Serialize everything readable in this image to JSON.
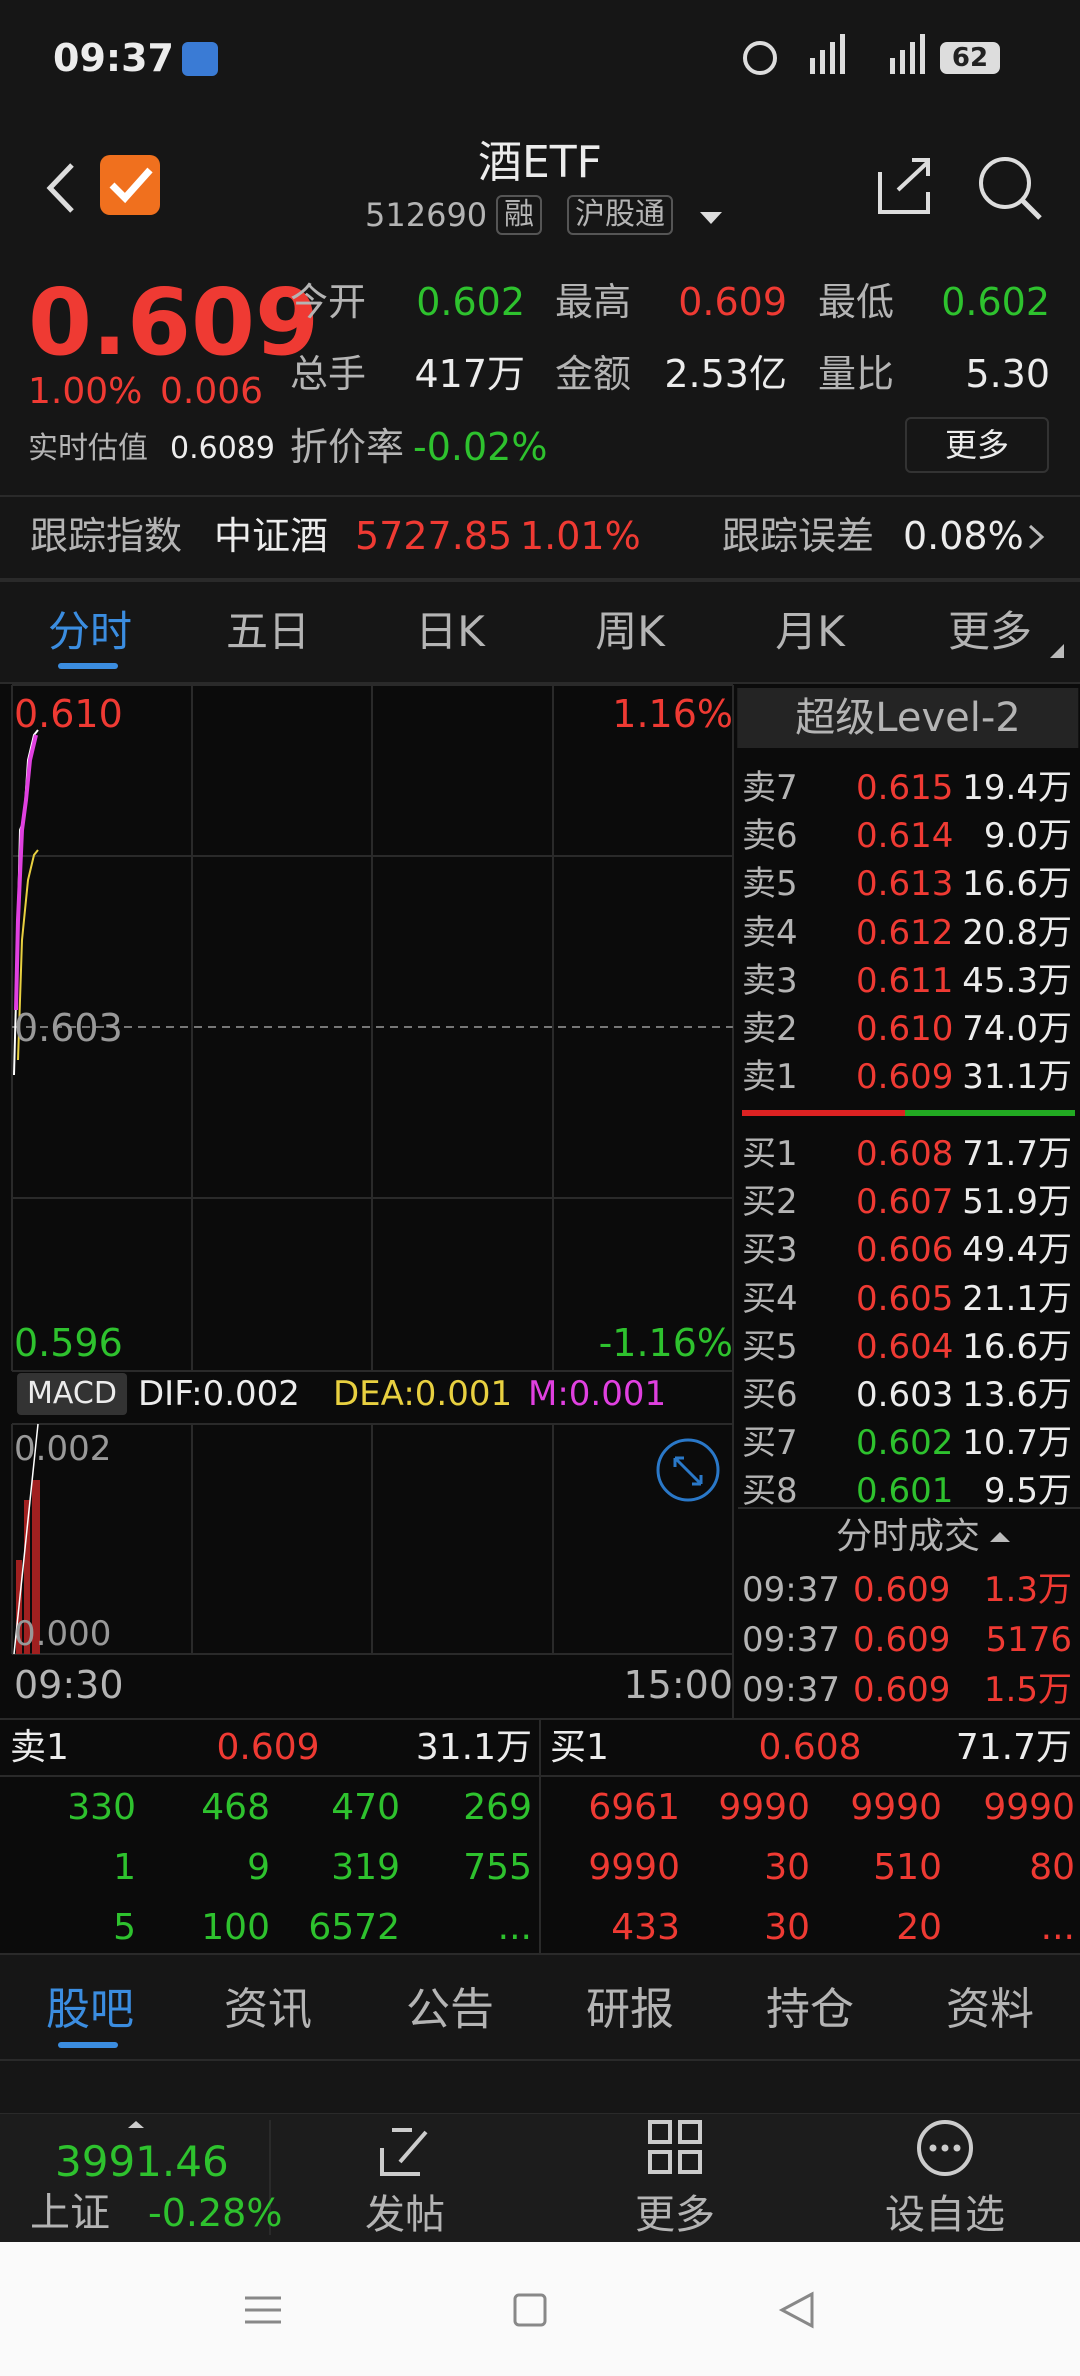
{
  "status_bar": {
    "time": "09:37",
    "battery": "62"
  },
  "header": {
    "title": "酒ETF",
    "code": "512690",
    "tags": [
      "融",
      "沪股通"
    ]
  },
  "quote": {
    "price": "0.609",
    "change_pct": "1.00%",
    "change": "0.006",
    "estimate_label": "实时估值",
    "estimate": "0.6089",
    "fields": [
      {
        "label": "今开",
        "value": "0.602"
      },
      {
        "label": "最高",
        "value": "0.609"
      },
      {
        "label": "最低",
        "value": "0.602"
      },
      {
        "label": "总手",
        "value": "417万"
      },
      {
        "label": "金额",
        "value": "2.53亿"
      },
      {
        "label": "量比",
        "value": "5.30"
      }
    ],
    "discount_label": "折价率",
    "discount": "-0.02%",
    "more": "更多"
  },
  "tracking": {
    "label": "跟踪指数",
    "index": "中证酒",
    "value": "5727.85",
    "pct": "1.01%",
    "error_label": "跟踪误差",
    "error": "0.08%"
  },
  "tabs": [
    "分时",
    "五日",
    "日K",
    "周K",
    "月K",
    "更多"
  ],
  "chart": {
    "top": "0.610",
    "top_pct": "1.16%",
    "mid": "0.603",
    "bottom": "0.596",
    "bottom_pct": "-1.16%",
    "start": "09:30",
    "end": "15:00"
  },
  "macd": {
    "label": "MACD",
    "dif": "DIF:0.002",
    "dea": "DEA:0.001",
    "m": "M:0.001",
    "top": "0.002",
    "bottom": "0.000"
  },
  "level2": {
    "title": "超级Level-2",
    "asks": [
      {
        "label": "卖7",
        "price": "0.615",
        "vol": "19.4万"
      },
      {
        "label": "卖6",
        "price": "0.614",
        "vol": "9.0万"
      },
      {
        "label": "卖5",
        "price": "0.613",
        "vol": "16.6万"
      },
      {
        "label": "卖4",
        "price": "0.612",
        "vol": "20.8万"
      },
      {
        "label": "卖3",
        "price": "0.611",
        "vol": "45.3万"
      },
      {
        "label": "卖2",
        "price": "0.610",
        "vol": "74.0万"
      },
      {
        "label": "卖1",
        "price": "0.609",
        "vol": "31.1万"
      }
    ],
    "bids": [
      {
        "label": "买1",
        "price": "0.608",
        "vol": "71.7万"
      },
      {
        "label": "买2",
        "price": "0.607",
        "vol": "51.9万"
      },
      {
        "label": "买3",
        "price": "0.606",
        "vol": "49.4万"
      },
      {
        "label": "买4",
        "price": "0.605",
        "vol": "21.1万"
      },
      {
        "label": "买5",
        "price": "0.604",
        "vol": "16.6万"
      },
      {
        "label": "买6",
        "price": "0.603",
        "vol": "13.6万"
      },
      {
        "label": "买7",
        "price": "0.602",
        "vol": "10.7万"
      },
      {
        "label": "买8",
        "price": "0.601",
        "vol": "9.5万"
      }
    ]
  },
  "trades": {
    "title": "分时成交",
    "rows": [
      [
        "09:37",
        "0.609",
        "1.3万"
      ],
      [
        "09:37",
        "0.609",
        "5176"
      ],
      [
        "09:37",
        "0.609",
        "1.5万"
      ]
    ]
  },
  "queue": {
    "ask": {
      "label": "卖1",
      "price": "0.609",
      "vol": "31.1万",
      "orders": [
        [
          "330",
          "468",
          "470",
          "269"
        ],
        [
          "1",
          "9",
          "319",
          "755"
        ],
        [
          "5",
          "100",
          "6572",
          "..."
        ]
      ]
    },
    "bid": {
      "label": "买1",
      "price": "0.608",
      "vol": "71.7万",
      "orders": [
        [
          "6961",
          "9990",
          "9990",
          "9990"
        ],
        [
          "9990",
          "30",
          "510",
          "80"
        ],
        [
          "433",
          "30",
          "20",
          "..."
        ]
      ]
    }
  },
  "bottom_tabs": [
    "股吧",
    "资讯",
    "公告",
    "研报",
    "持仓",
    "资料"
  ],
  "footer": {
    "index_value": "3991.46",
    "index_name": "上证",
    "index_pct": "-0.28%",
    "actions": [
      "发帖",
      "更多",
      "设自选"
    ]
  }
}
